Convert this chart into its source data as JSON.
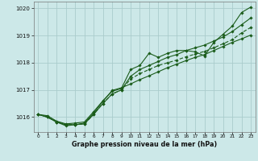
{
  "title": "Graphe pression niveau de la mer (hPa)",
  "xlabel_ticks": [
    "0",
    "1",
    "2",
    "3",
    "4",
    "5",
    "6",
    "7",
    "8",
    "9",
    "10",
    "11",
    "12",
    "13",
    "14",
    "15",
    "16",
    "17",
    "18",
    "19",
    "20",
    "21",
    "22",
    "23"
  ],
  "ylim": [
    1015.45,
    1020.25
  ],
  "yticks": [
    1016,
    1017,
    1018,
    1019,
    1020
  ],
  "xlim": [
    -0.5,
    23.5
  ],
  "bg_color": "#cce8e8",
  "grid_color": "#aacccc",
  "line_color": "#1a5c1a",
  "line1": [
    1016.1,
    1016.05,
    1015.85,
    1015.75,
    1015.78,
    1015.82,
    1016.2,
    1016.6,
    1016.95,
    1017.05,
    1017.75,
    1017.9,
    1018.35,
    1018.2,
    1018.35,
    1018.45,
    1018.45,
    1018.4,
    1018.25,
    1018.75,
    1019.05,
    1019.35,
    1019.85,
    1020.05
  ],
  "line2": [
    1016.1,
    1016.0,
    1015.82,
    1015.72,
    1015.72,
    1015.75,
    1016.1,
    1016.5,
    1016.85,
    1017.0,
    1017.5,
    1017.75,
    1017.9,
    1018.05,
    1018.2,
    1018.3,
    1018.45,
    1018.55,
    1018.65,
    1018.8,
    1018.95,
    1019.15,
    1019.4,
    1019.65
  ],
  "line3": [
    1016.1,
    1016.0,
    1015.82,
    1015.72,
    1015.72,
    1015.75,
    1016.1,
    1016.5,
    1016.85,
    1017.0,
    1017.4,
    1017.6,
    1017.75,
    1017.9,
    1018.0,
    1018.1,
    1018.22,
    1018.32,
    1018.42,
    1018.55,
    1018.7,
    1018.85,
    1019.1,
    1019.3
  ],
  "line4": [
    1016.1,
    1016.0,
    1015.82,
    1015.68,
    1015.72,
    1015.78,
    1016.15,
    1016.58,
    1016.98,
    1017.08,
    1017.22,
    1017.38,
    1017.52,
    1017.67,
    1017.82,
    1017.95,
    1018.08,
    1018.2,
    1018.3,
    1018.45,
    1018.6,
    1018.75,
    1018.88,
    1019.02
  ]
}
